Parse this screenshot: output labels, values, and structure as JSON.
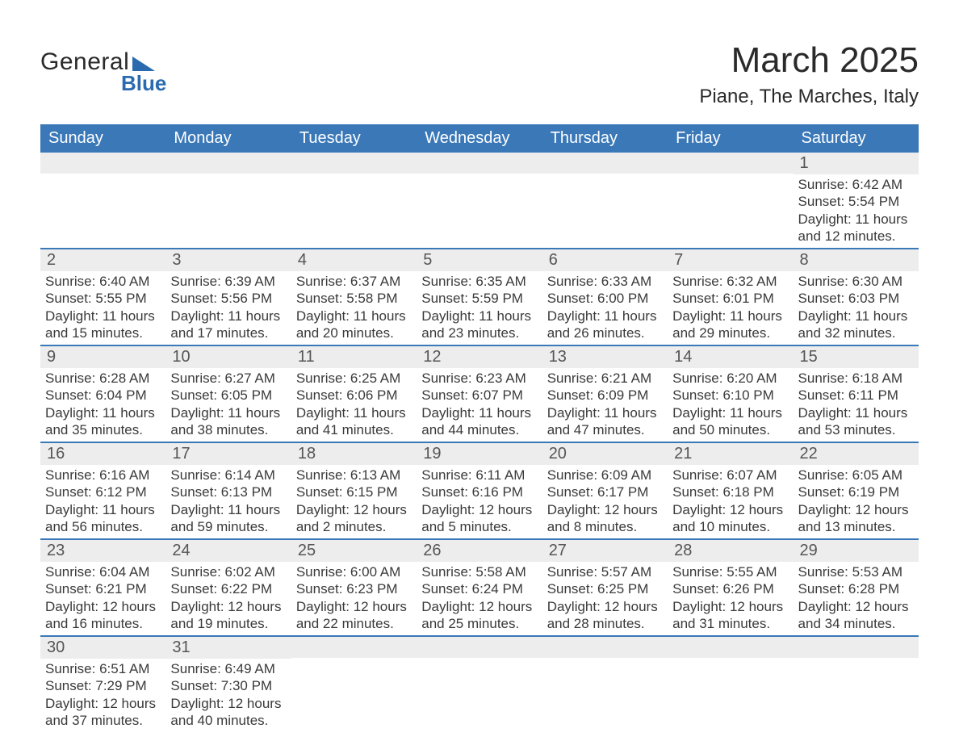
{
  "brand": {
    "word1": "General",
    "word2": "Blue"
  },
  "header": {
    "title": "March 2025",
    "location": "Piane, The Marches, Italy"
  },
  "calendar": {
    "type": "table",
    "header_bg": "#3a78b8",
    "header_fg": "#ffffff",
    "row_divider_color": "#3a78b8",
    "daynum_bg": "#ededed",
    "text_color": "#3a3a3a",
    "columns": [
      "Sunday",
      "Monday",
      "Tuesday",
      "Wednesday",
      "Thursday",
      "Friday",
      "Saturday"
    ],
    "weeks": [
      [
        {
          "n": "",
          "sunrise": "",
          "sunset": "",
          "daylight": ""
        },
        {
          "n": "",
          "sunrise": "",
          "sunset": "",
          "daylight": ""
        },
        {
          "n": "",
          "sunrise": "",
          "sunset": "",
          "daylight": ""
        },
        {
          "n": "",
          "sunrise": "",
          "sunset": "",
          "daylight": ""
        },
        {
          "n": "",
          "sunrise": "",
          "sunset": "",
          "daylight": ""
        },
        {
          "n": "",
          "sunrise": "",
          "sunset": "",
          "daylight": ""
        },
        {
          "n": "1",
          "sunrise": "Sunrise: 6:42 AM",
          "sunset": "Sunset: 5:54 PM",
          "daylight": "Daylight: 11 hours and 12 minutes."
        }
      ],
      [
        {
          "n": "2",
          "sunrise": "Sunrise: 6:40 AM",
          "sunset": "Sunset: 5:55 PM",
          "daylight": "Daylight: 11 hours and 15 minutes."
        },
        {
          "n": "3",
          "sunrise": "Sunrise: 6:39 AM",
          "sunset": "Sunset: 5:56 PM",
          "daylight": "Daylight: 11 hours and 17 minutes."
        },
        {
          "n": "4",
          "sunrise": "Sunrise: 6:37 AM",
          "sunset": "Sunset: 5:58 PM",
          "daylight": "Daylight: 11 hours and 20 minutes."
        },
        {
          "n": "5",
          "sunrise": "Sunrise: 6:35 AM",
          "sunset": "Sunset: 5:59 PM",
          "daylight": "Daylight: 11 hours and 23 minutes."
        },
        {
          "n": "6",
          "sunrise": "Sunrise: 6:33 AM",
          "sunset": "Sunset: 6:00 PM",
          "daylight": "Daylight: 11 hours and 26 minutes."
        },
        {
          "n": "7",
          "sunrise": "Sunrise: 6:32 AM",
          "sunset": "Sunset: 6:01 PM",
          "daylight": "Daylight: 11 hours and 29 minutes."
        },
        {
          "n": "8",
          "sunrise": "Sunrise: 6:30 AM",
          "sunset": "Sunset: 6:03 PM",
          "daylight": "Daylight: 11 hours and 32 minutes."
        }
      ],
      [
        {
          "n": "9",
          "sunrise": "Sunrise: 6:28 AM",
          "sunset": "Sunset: 6:04 PM",
          "daylight": "Daylight: 11 hours and 35 minutes."
        },
        {
          "n": "10",
          "sunrise": "Sunrise: 6:27 AM",
          "sunset": "Sunset: 6:05 PM",
          "daylight": "Daylight: 11 hours and 38 minutes."
        },
        {
          "n": "11",
          "sunrise": "Sunrise: 6:25 AM",
          "sunset": "Sunset: 6:06 PM",
          "daylight": "Daylight: 11 hours and 41 minutes."
        },
        {
          "n": "12",
          "sunrise": "Sunrise: 6:23 AM",
          "sunset": "Sunset: 6:07 PM",
          "daylight": "Daylight: 11 hours and 44 minutes."
        },
        {
          "n": "13",
          "sunrise": "Sunrise: 6:21 AM",
          "sunset": "Sunset: 6:09 PM",
          "daylight": "Daylight: 11 hours and 47 minutes."
        },
        {
          "n": "14",
          "sunrise": "Sunrise: 6:20 AM",
          "sunset": "Sunset: 6:10 PM",
          "daylight": "Daylight: 11 hours and 50 minutes."
        },
        {
          "n": "15",
          "sunrise": "Sunrise: 6:18 AM",
          "sunset": "Sunset: 6:11 PM",
          "daylight": "Daylight: 11 hours and 53 minutes."
        }
      ],
      [
        {
          "n": "16",
          "sunrise": "Sunrise: 6:16 AM",
          "sunset": "Sunset: 6:12 PM",
          "daylight": "Daylight: 11 hours and 56 minutes."
        },
        {
          "n": "17",
          "sunrise": "Sunrise: 6:14 AM",
          "sunset": "Sunset: 6:13 PM",
          "daylight": "Daylight: 11 hours and 59 minutes."
        },
        {
          "n": "18",
          "sunrise": "Sunrise: 6:13 AM",
          "sunset": "Sunset: 6:15 PM",
          "daylight": "Daylight: 12 hours and 2 minutes."
        },
        {
          "n": "19",
          "sunrise": "Sunrise: 6:11 AM",
          "sunset": "Sunset: 6:16 PM",
          "daylight": "Daylight: 12 hours and 5 minutes."
        },
        {
          "n": "20",
          "sunrise": "Sunrise: 6:09 AM",
          "sunset": "Sunset: 6:17 PM",
          "daylight": "Daylight: 12 hours and 8 minutes."
        },
        {
          "n": "21",
          "sunrise": "Sunrise: 6:07 AM",
          "sunset": "Sunset: 6:18 PM",
          "daylight": "Daylight: 12 hours and 10 minutes."
        },
        {
          "n": "22",
          "sunrise": "Sunrise: 6:05 AM",
          "sunset": "Sunset: 6:19 PM",
          "daylight": "Daylight: 12 hours and 13 minutes."
        }
      ],
      [
        {
          "n": "23",
          "sunrise": "Sunrise: 6:04 AM",
          "sunset": "Sunset: 6:21 PM",
          "daylight": "Daylight: 12 hours and 16 minutes."
        },
        {
          "n": "24",
          "sunrise": "Sunrise: 6:02 AM",
          "sunset": "Sunset: 6:22 PM",
          "daylight": "Daylight: 12 hours and 19 minutes."
        },
        {
          "n": "25",
          "sunrise": "Sunrise: 6:00 AM",
          "sunset": "Sunset: 6:23 PM",
          "daylight": "Daylight: 12 hours and 22 minutes."
        },
        {
          "n": "26",
          "sunrise": "Sunrise: 5:58 AM",
          "sunset": "Sunset: 6:24 PM",
          "daylight": "Daylight: 12 hours and 25 minutes."
        },
        {
          "n": "27",
          "sunrise": "Sunrise: 5:57 AM",
          "sunset": "Sunset: 6:25 PM",
          "daylight": "Daylight: 12 hours and 28 minutes."
        },
        {
          "n": "28",
          "sunrise": "Sunrise: 5:55 AM",
          "sunset": "Sunset: 6:26 PM",
          "daylight": "Daylight: 12 hours and 31 minutes."
        },
        {
          "n": "29",
          "sunrise": "Sunrise: 5:53 AM",
          "sunset": "Sunset: 6:28 PM",
          "daylight": "Daylight: 12 hours and 34 minutes."
        }
      ],
      [
        {
          "n": "30",
          "sunrise": "Sunrise: 6:51 AM",
          "sunset": "Sunset: 7:29 PM",
          "daylight": "Daylight: 12 hours and 37 minutes."
        },
        {
          "n": "31",
          "sunrise": "Sunrise: 6:49 AM",
          "sunset": "Sunset: 7:30 PM",
          "daylight": "Daylight: 12 hours and 40 minutes."
        },
        {
          "n": "",
          "sunrise": "",
          "sunset": "",
          "daylight": ""
        },
        {
          "n": "",
          "sunrise": "",
          "sunset": "",
          "daylight": ""
        },
        {
          "n": "",
          "sunrise": "",
          "sunset": "",
          "daylight": ""
        },
        {
          "n": "",
          "sunrise": "",
          "sunset": "",
          "daylight": ""
        },
        {
          "n": "",
          "sunrise": "",
          "sunset": "",
          "daylight": ""
        }
      ]
    ]
  }
}
